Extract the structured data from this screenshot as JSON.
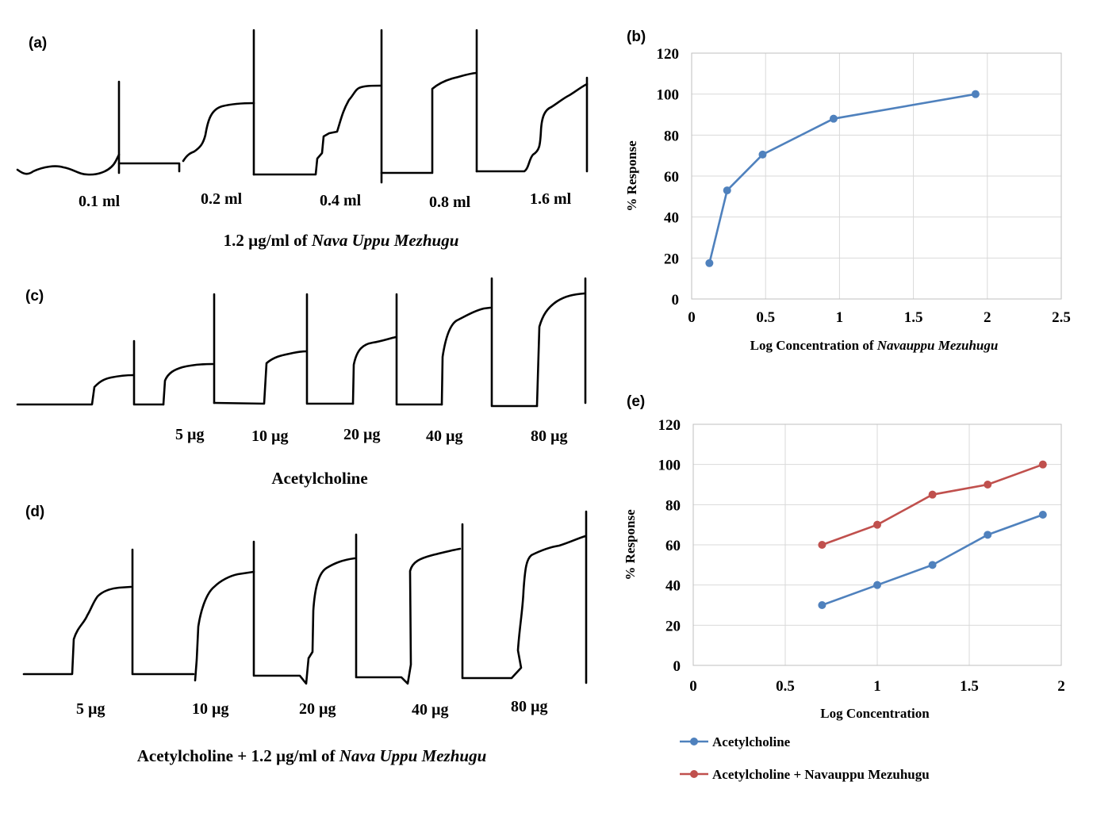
{
  "panels": {
    "a": {
      "label": "(a)",
      "doses": [
        "0.1 ml",
        "0.2 ml",
        "0.4 ml",
        "0.8 ml",
        "1.6 ml"
      ],
      "caption_prefix": "1.2 µg/ml of ",
      "caption_italic": "Nava Uppu Mezhugu"
    },
    "c": {
      "label": "(c)",
      "doses": [
        "5 µg",
        "10 µg",
        "20 µg",
        "40 µg",
        "80 µg"
      ],
      "caption": "Acetylcholine"
    },
    "d": {
      "label": "(d)",
      "doses": [
        "5 µg",
        "10 µg",
        "20 µg",
        "40 µg",
        "80 µg"
      ],
      "caption_prefix": "Acetylcholine + 1.2 µg/ml of ",
      "caption_italic": "Nava Uppu Mezhugu"
    }
  },
  "chart_data": [
    {
      "id": "b",
      "panel_label": "(b)",
      "type": "line",
      "ylabel": "% Response",
      "xlabel_prefix": "Log Concentration of ",
      "xlabel_italic": "Navauppu Mezuhugu",
      "xlim": [
        0,
        2.5
      ],
      "ylim": [
        0,
        120
      ],
      "xticks": [
        "0",
        "0.5",
        "1",
        "1.5",
        "2",
        "2.5"
      ],
      "yticks": [
        "0",
        "20",
        "40",
        "60",
        "80",
        "100",
        "120"
      ],
      "grid": true,
      "series": [
        {
          "name": "Navauppu Mezuhugu",
          "color": "#4f81bd",
          "x": [
            0.12,
            0.24,
            0.48,
            0.96,
            1.92
          ],
          "y": [
            17.5,
            53,
            70.5,
            88,
            100
          ]
        }
      ]
    },
    {
      "id": "e",
      "panel_label": "(e)",
      "type": "line",
      "ylabel": "% Response",
      "xlabel": "Log Concentration",
      "xlim": [
        0,
        2
      ],
      "ylim": [
        0,
        120
      ],
      "xticks": [
        "0",
        "0.5",
        "1",
        "1.5",
        "2"
      ],
      "yticks": [
        "0",
        "20",
        "40",
        "60",
        "80",
        "100",
        "120"
      ],
      "grid": true,
      "legend_position": "bottom",
      "series": [
        {
          "name": "Acetylcholine",
          "color": "#4f81bd",
          "x": [
            0.7,
            1.0,
            1.3,
            1.6,
            1.9
          ],
          "y": [
            30,
            40,
            50,
            65,
            75
          ]
        },
        {
          "name": "Acetylcholine + Navauppu Mezuhugu",
          "color": "#c0504d",
          "x": [
            0.7,
            1.0,
            1.3,
            1.6,
            1.9
          ],
          "y": [
            60,
            70,
            85,
            90,
            100
          ]
        }
      ]
    }
  ]
}
